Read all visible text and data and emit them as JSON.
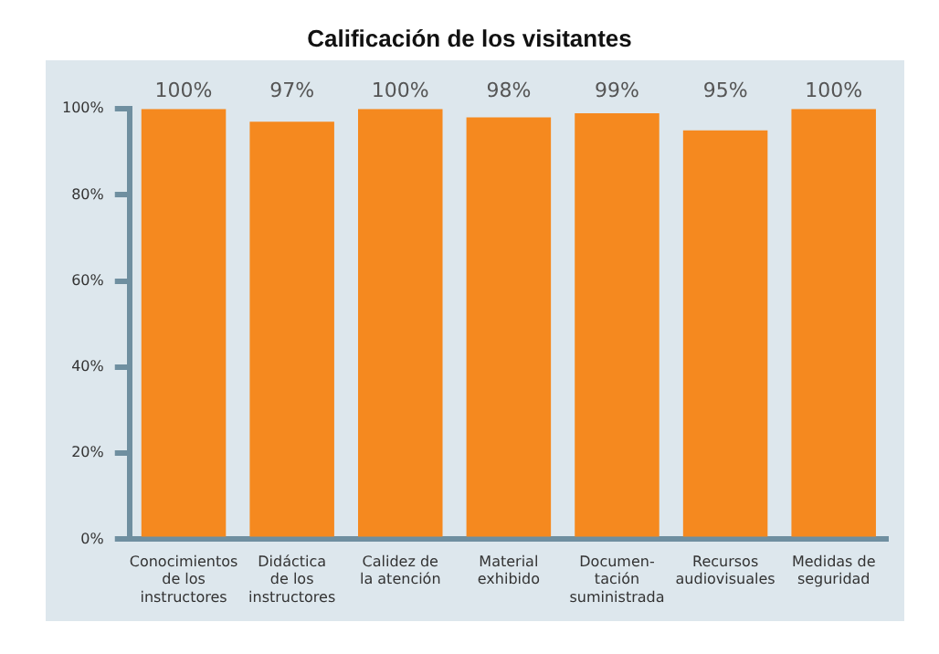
{
  "chart_data": {
    "type": "bar",
    "title": "Calificación de los visitantes",
    "categories": [
      "Conocimientos\nde los\ninstructores",
      "Didáctica\nde los\ninstructores",
      "Calidez de\nla atención",
      "Material\nexhibido",
      "Documen-\ntación\nsuministrada",
      "Recursos\naudiovisuales",
      "Medidas de\nseguridad"
    ],
    "values": [
      100,
      97,
      100,
      98,
      99,
      95,
      100
    ],
    "value_labels": [
      "100%",
      "97%",
      "100%",
      "98%",
      "99%",
      "95%",
      "100%"
    ],
    "color": "#f5891f",
    "ylim": [
      0,
      100
    ],
    "yticks": [
      {
        "value": 0,
        "label": "0%"
      },
      {
        "value": 20,
        "label": "20%"
      },
      {
        "value": 40,
        "label": "40%"
      },
      {
        "value": 60,
        "label": "60%"
      },
      {
        "value": 80,
        "label": "80%"
      },
      {
        "value": 100,
        "label": "100%"
      }
    ],
    "legend": false
  }
}
